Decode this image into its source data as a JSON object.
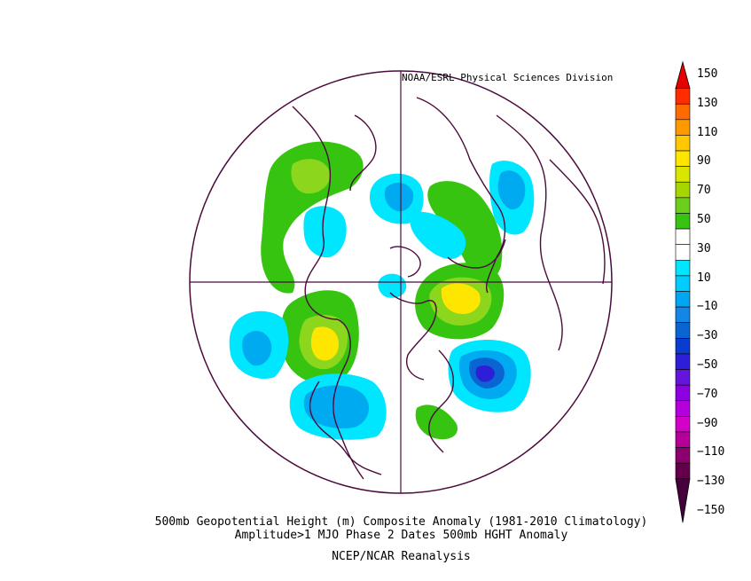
{
  "credit": "NOAA/ESRL Physical Sciences Division",
  "caption": {
    "line1": "500mb Geopotential Height (m) Composite Anomaly (1981-2010 Climatology)",
    "line2": "Amplitude>1 MJO Phase 2 Dates 500mb HGHT Anomaly",
    "line3": "NCEP/NCAR Reanalysis"
  },
  "colorbar": {
    "labels": [
      "150",
      "130",
      "110",
      "90",
      "70",
      "50",
      "30",
      "10",
      "−10",
      "−30",
      "−50",
      "−70",
      "−90",
      "−110",
      "−130",
      "−150"
    ],
    "colors": [
      "#e60000",
      "#ff2d00",
      "#ff6a00",
      "#ff9900",
      "#ffc800",
      "#ffe600",
      "#d9e600",
      "#a6d600",
      "#6ccf1e",
      "#36c410",
      "#ffffff",
      "#ffffff",
      "#00e6ff",
      "#00ccff",
      "#00a6f0",
      "#1487e6",
      "#0a64d2",
      "#0a3cd2",
      "#2d1ed7",
      "#6414dc",
      "#8c00e1",
      "#b400dc",
      "#d200c8",
      "#b40096",
      "#8c006e",
      "#64004b",
      "#46003c"
    ]
  },
  "colors": {
    "coast": "#4b0a3c",
    "plus10": "#36c410",
    "plus30": "#8cd61e",
    "plus50": "#c8e600",
    "plus70": "#ffe600",
    "minus10": "#00e6ff",
    "minus30": "#00aaf0",
    "minus50": "#0a64d2",
    "minus70": "#2d1ed7"
  }
}
